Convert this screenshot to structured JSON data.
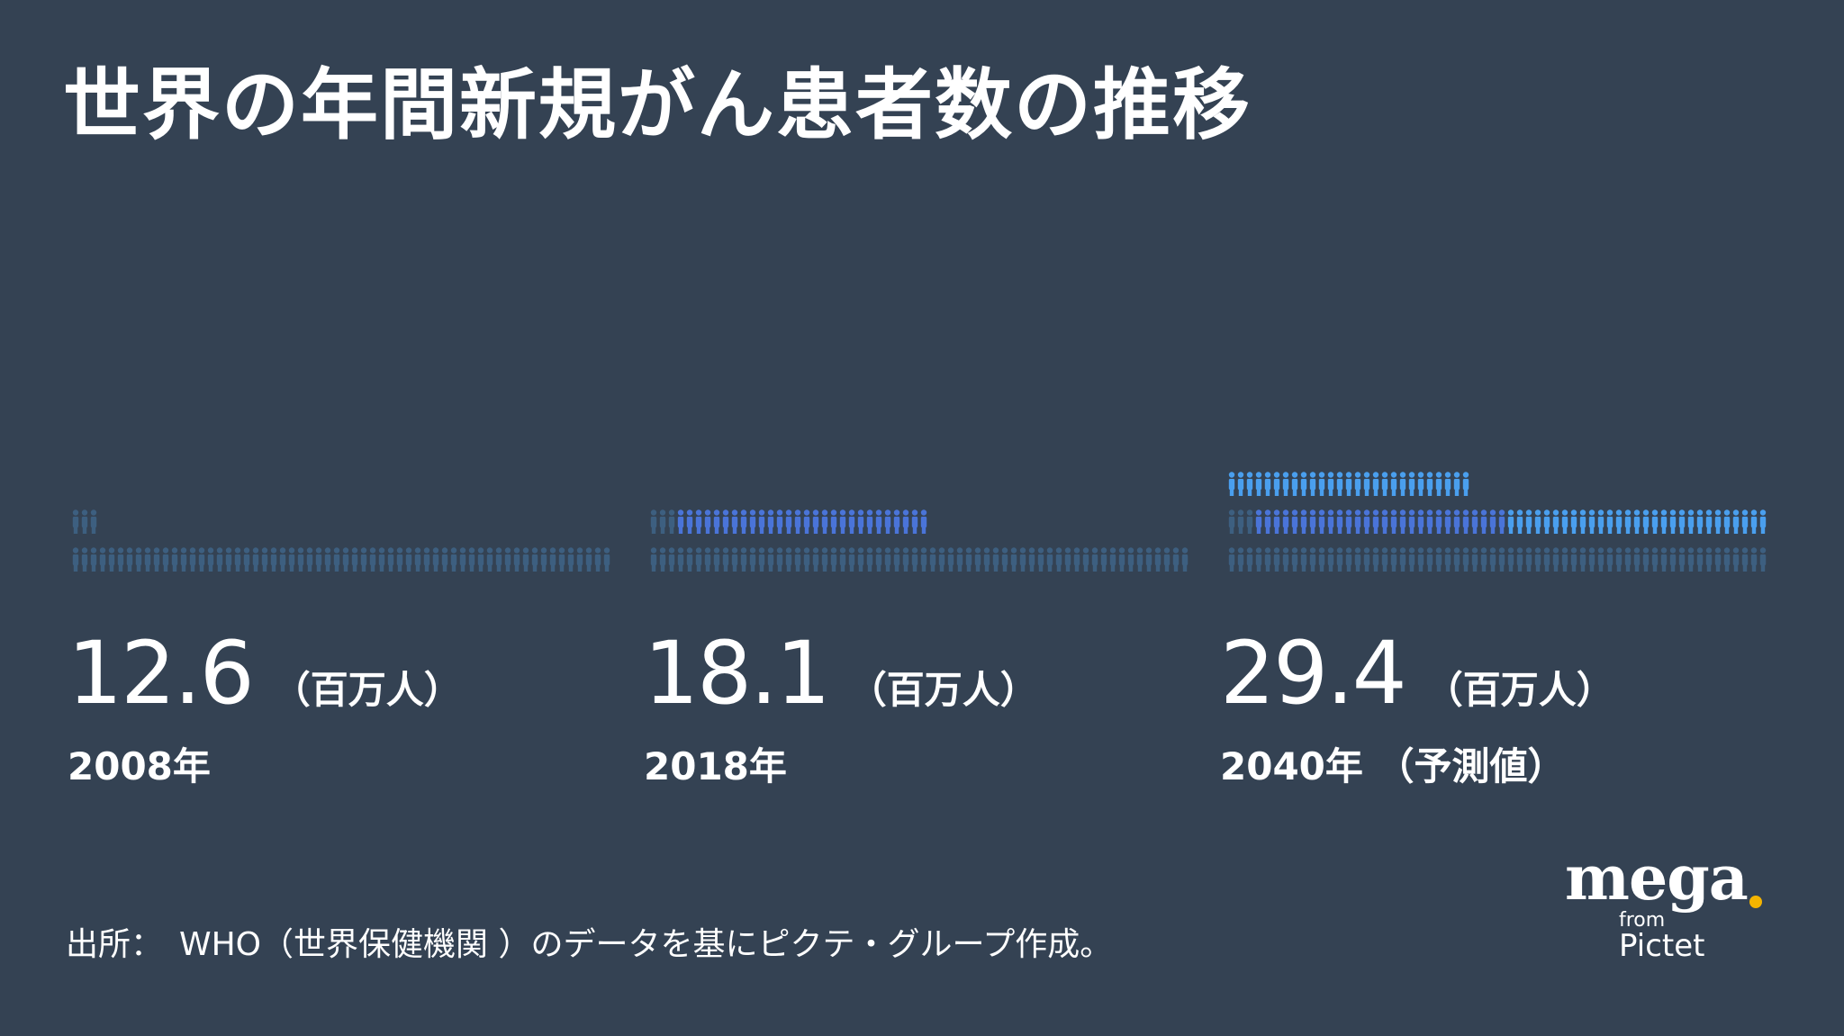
{
  "title": "世界の年間新規がん患者数の推移",
  "chart_data": {
    "type": "pictogram",
    "title": "世界の年間新規がん患者数の推移",
    "unit": "（百万人）",
    "categories": [
      "2008年",
      "2018年",
      "2040年 （予測値）"
    ],
    "values": [
      12.6,
      18.1,
      29.4
    ],
    "colors": {
      "base": "#3d5f80",
      "added_2018": "#4a74d8",
      "added_2040": "#4a9fee"
    }
  },
  "source": "出所：　WHO（世界保健機関 ）のデータを基にピクテ・グループ作成。",
  "logo": {
    "mega": "mega",
    "from": "from",
    "pictet": "Pictet",
    "dot_color": "#f4b400"
  }
}
